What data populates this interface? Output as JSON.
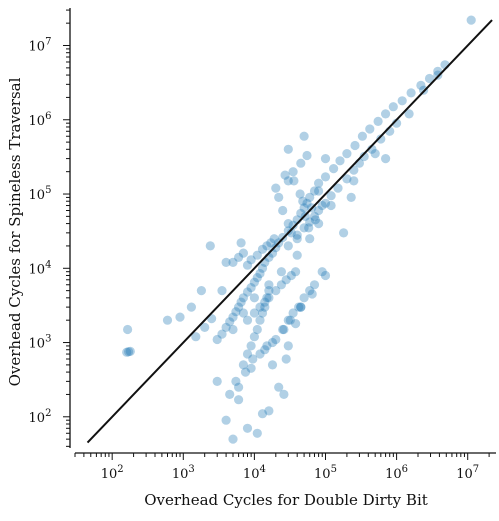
{
  "chart_data": {
    "type": "scatter",
    "title": "",
    "xlabel": "Overhead Cycles for Double Dirty Bit",
    "ylabel": "Overhead Cycles for Spineless Traversal",
    "xscale": "log",
    "yscale": "log",
    "xlim": [
      30,
      25000000
    ],
    "ylim": [
      38,
      32000000
    ],
    "x_ticks": [
      {
        "value": 100,
        "base": "10",
        "exp": "2"
      },
      {
        "value": 1000,
        "base": "10",
        "exp": "3"
      },
      {
        "value": 10000,
        "base": "10",
        "exp": "4"
      },
      {
        "value": 100000,
        "base": "10",
        "exp": "5"
      },
      {
        "value": 1000000,
        "base": "10",
        "exp": "6"
      },
      {
        "value": 10000000,
        "base": "10",
        "exp": "7"
      }
    ],
    "y_ticks": [
      {
        "value": 100,
        "base": "10",
        "exp": "2"
      },
      {
        "value": 1000,
        "base": "10",
        "exp": "3"
      },
      {
        "value": 10000,
        "base": "10",
        "exp": "4"
      },
      {
        "value": 100000,
        "base": "10",
        "exp": "5"
      },
      {
        "value": 1000000,
        "base": "10",
        "exp": "6"
      },
      {
        "value": 10000000,
        "base": "10",
        "exp": "7"
      }
    ],
    "reference_line": {
      "type": "y=x",
      "x": [
        45,
        22000000
      ],
      "y": [
        45,
        22000000
      ],
      "color": "#111111"
    },
    "grid": false,
    "point_color": "#1f77b4",
    "series": [
      {
        "x": [
          170,
          160,
          180,
          165,
          3000,
          4000,
          5000,
          6000,
          8000,
          11000,
          13000,
          16000,
          22000,
          6000,
          9000,
          28000,
          30000,
          38000,
          45000,
          60000,
          100000,
          180000,
          230000,
          700000,
          2400000,
          11200000,
          5000,
          7000,
          10000,
          16000,
          24000,
          40000,
          60000,
          80000,
          120000,
          250000,
          500000,
          1500000,
          3800000,
          12000,
          15000,
          20000,
          25000,
          30000,
          35000,
          42000,
          50000,
          70000,
          90000,
          4500,
          5500,
          7500,
          9500,
          14000,
          18000,
          26000,
          32000,
          45000,
          65000,
          8000,
          10000,
          12000,
          14000,
          16000,
          20000,
          24000,
          28000,
          33000,
          38000,
          5000,
          6000,
          7000,
          8000,
          9000,
          11000,
          13000,
          15000,
          17000,
          19000,
          7000,
          8000,
          9000,
          10000,
          11000,
          12000,
          13000,
          14000,
          15000,
          16000,
          3000,
          3500,
          4000,
          4500,
          5000,
          5500,
          6000,
          6500,
          7000,
          8000,
          9000,
          10000,
          11000,
          12000,
          13000,
          14000,
          16000,
          18000,
          20000,
          22000,
          25000,
          30000,
          35000,
          40000,
          45000,
          50000,
          55000,
          60000,
          70000,
          80000,
          100000,
          130000,
          160000,
          200000,
          260000,
          330000,
          420000,
          550000,
          700000,
          900000,
          1200000,
          1600000,
          2200000,
          2900000,
          3800000,
          4800000,
          1500,
          2000,
          2500,
          30000,
          35000,
          45000,
          55000,
          30000,
          40000,
          50000,
          60000,
          70000,
          80000,
          100000,
          120000,
          150000,
          200000,
          250000,
          300000,
          350000,
          450000,
          600000,
          800000,
          1000000,
          20000,
          22000,
          25000,
          27000,
          30000,
          33000,
          36000,
          40000,
          44000,
          48000,
          52000,
          58000,
          64000,
          72000,
          80000,
          90000,
          600,
          900,
          1300,
          1800,
          2400,
          4000,
          30000,
          50000,
          100000,
          3500,
          6500,
          18000,
          26000
        ],
        "y": [
          750,
          740,
          760,
          1500,
          300,
          90,
          50,
          170,
          70,
          60,
          110,
          120,
          250,
          250,
          450,
          600,
          900,
          1800,
          3000,
          5000,
          8000,
          30000,
          90000,
          300000,
          2500000,
          22000000,
          1500,
          2500,
          4000,
          6000,
          9000,
          15000,
          25000,
          40000,
          70000,
          150000,
          350000,
          1200000,
          4000000,
          700,
          900,
          1100,
          1500,
          2000,
          2500,
          3000,
          4000,
          6000,
          9000,
          200,
          300,
          400,
          600,
          800,
          1000,
          1500,
          2000,
          3000,
          4500,
          2000,
          2500,
          3000,
          3500,
          4000,
          5000,
          6000,
          7000,
          8000,
          9000,
          12000,
          14000,
          16000,
          11000,
          13000,
          15000,
          18000,
          20000,
          22000,
          25000,
          500,
          700,
          900,
          1200,
          1500,
          2000,
          2500,
          3000,
          4000,
          5000,
          1100,
          1300,
          1600,
          1900,
          2200,
          2600,
          3000,
          3500,
          4000,
          4800,
          5500,
          6500,
          7500,
          8500,
          10000,
          12000,
          14000,
          16000,
          19000,
          22000,
          26000,
          32000,
          38000,
          45000,
          55000,
          65000,
          75000,
          90000,
          110000,
          140000,
          170000,
          220000,
          280000,
          350000,
          450000,
          600000,
          750000,
          950000,
          1200000,
          1500000,
          1800000,
          2300000,
          2900000,
          3600000,
          4500000,
          5500000,
          1200,
          1600,
          2100,
          150000,
          200000,
          260000,
          330000,
          20000,
          28000,
          35000,
          42000,
          50000,
          60000,
          75000,
          95000,
          120000,
          160000,
          210000,
          260000,
          320000,
          400000,
          550000,
          700000,
          900000,
          120000,
          90000,
          60000,
          180000,
          40000,
          30000,
          150000,
          25000,
          100000,
          80000,
          50000,
          35000,
          65000,
          45000,
          110000,
          70000,
          2000,
          2200,
          3000,
          5000,
          20000,
          12000,
          400000,
          600000,
          300000,
          5000,
          22000,
          500,
          200
        ]
      }
    ]
  }
}
